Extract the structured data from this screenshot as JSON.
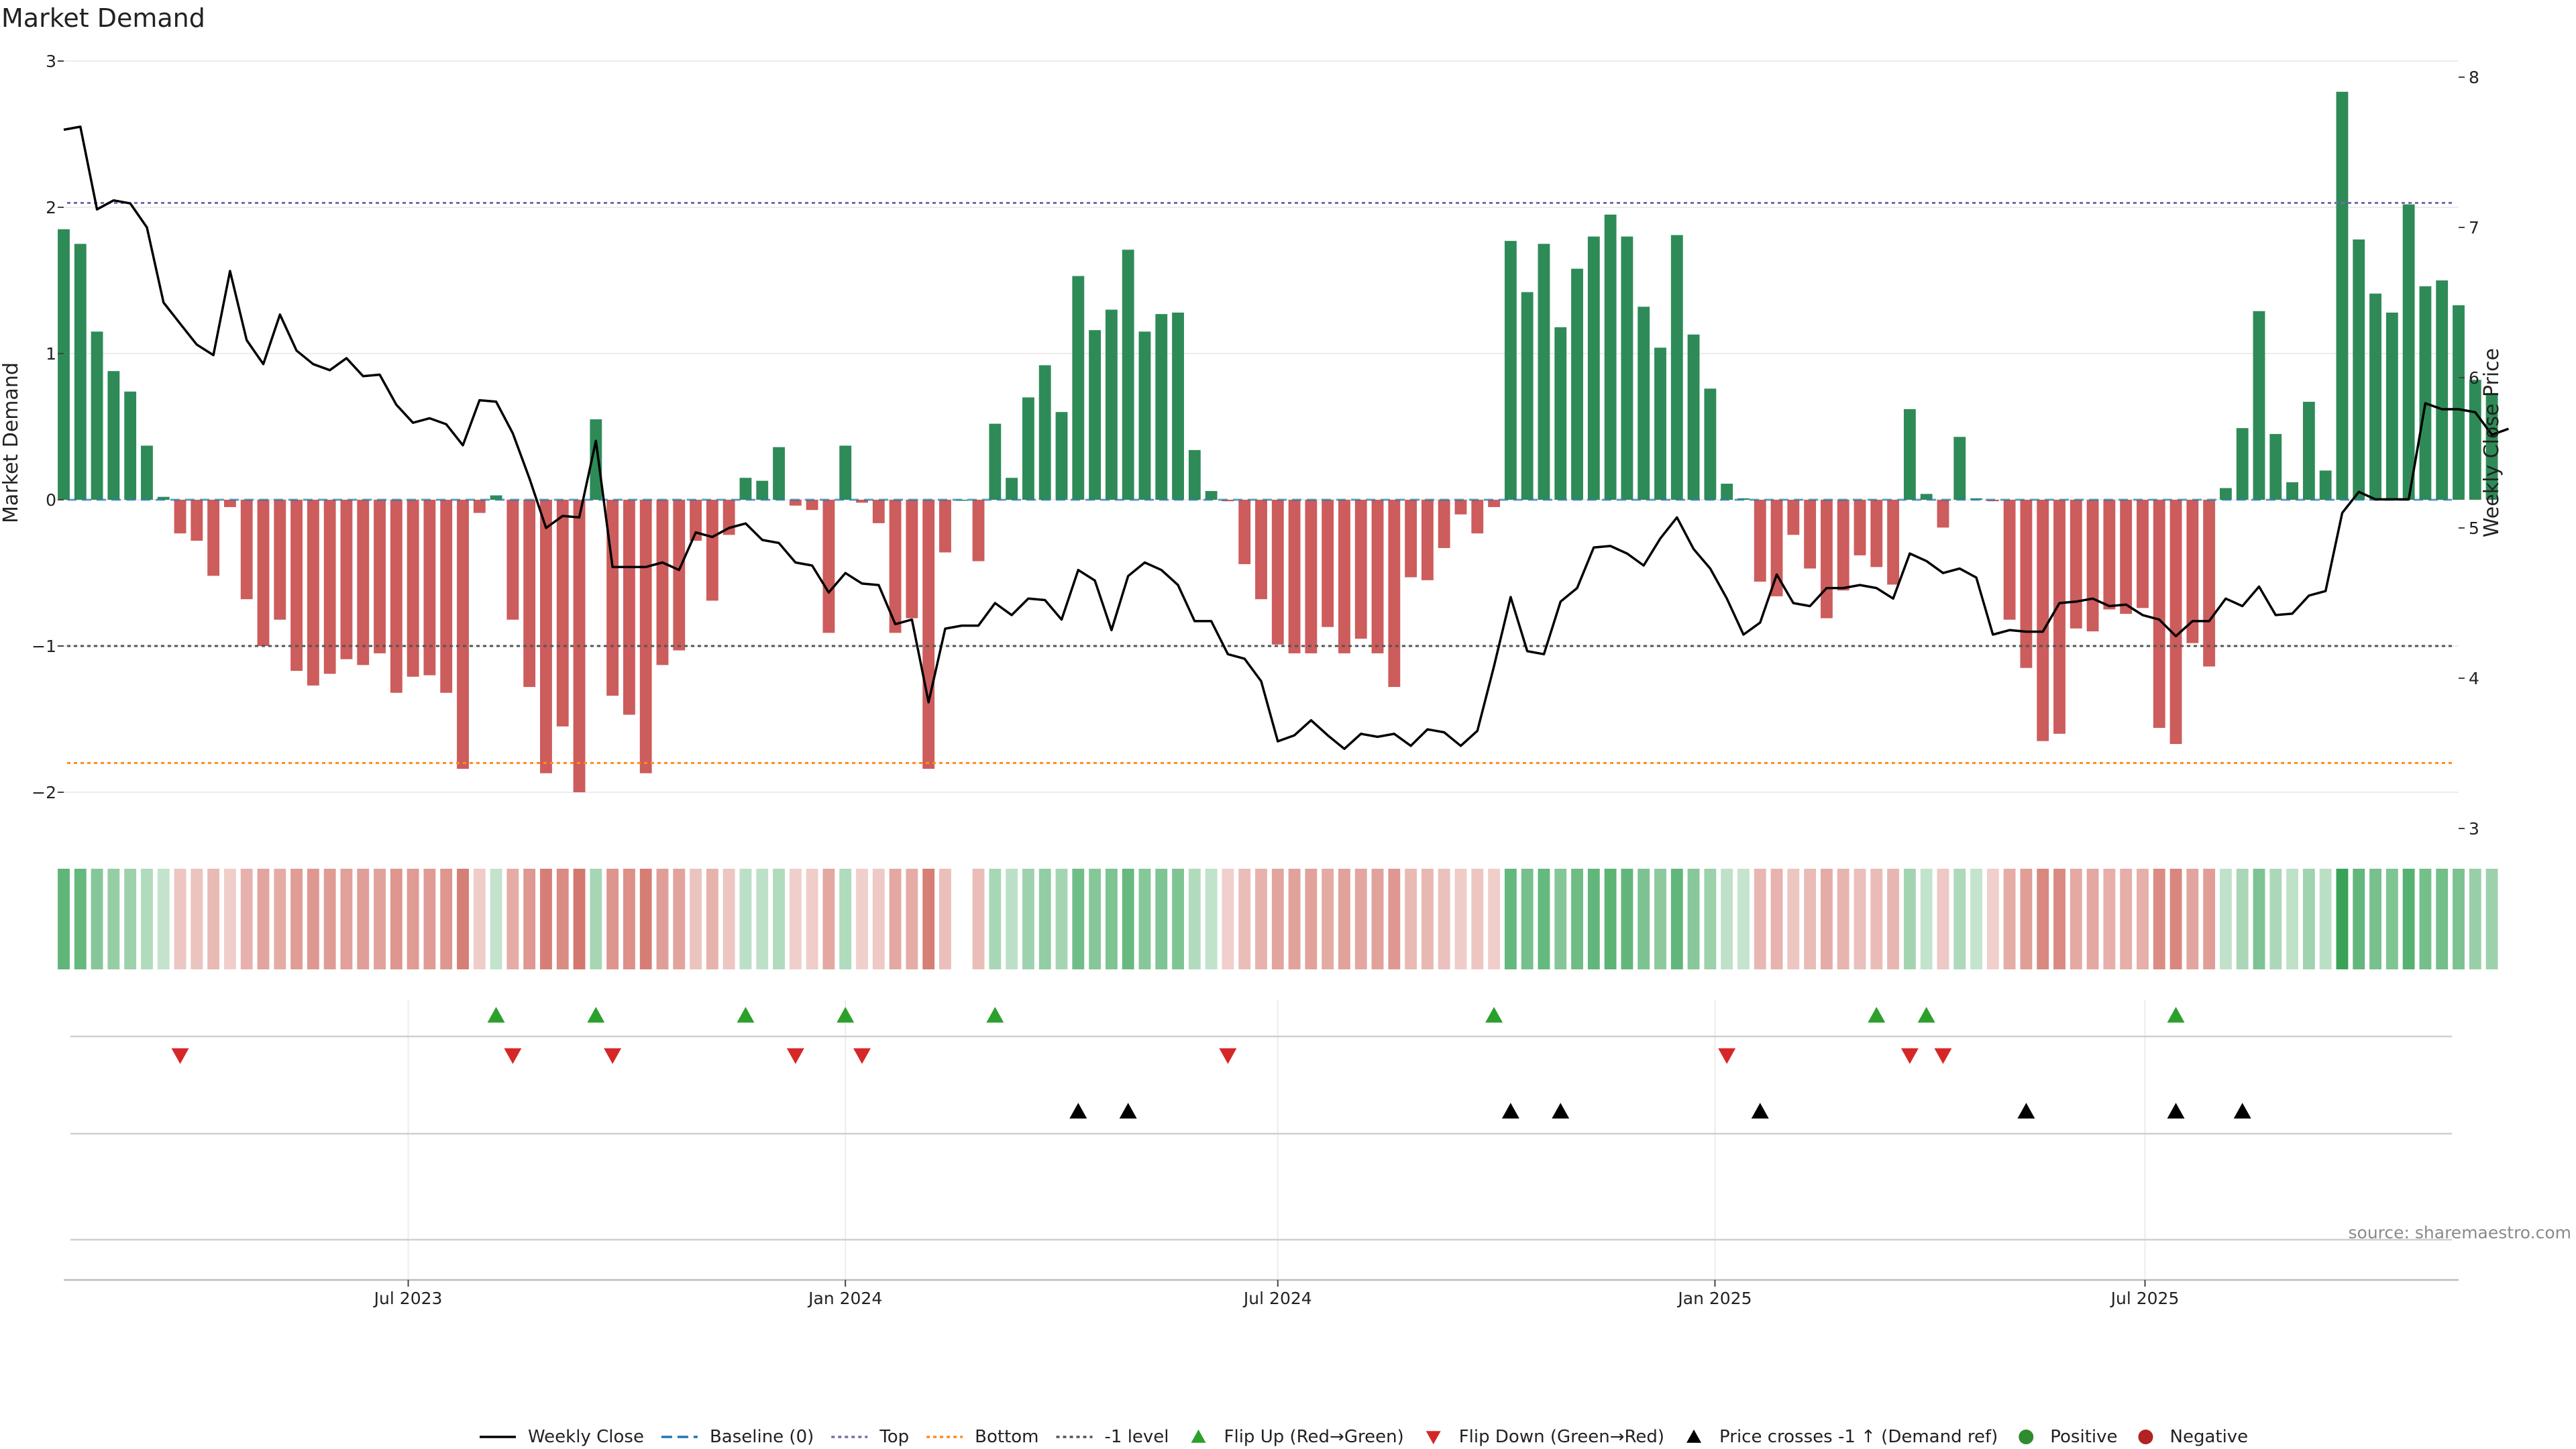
{
  "chart_data": {
    "type": "bar",
    "title": "Market Demand",
    "ylabel": "Market Demand",
    "y2label": "Weekly Close Price",
    "ylim": [
      -2.2,
      3
    ],
    "y2lim": [
      2.8,
      8.3
    ],
    "yticks": [
      3,
      2,
      1,
      0,
      -1,
      -2
    ],
    "yticks_labels": [
      "3",
      "2",
      "1",
      "0",
      "−1",
      "−2"
    ],
    "y2ticks": [
      8,
      7,
      6,
      5,
      4,
      3
    ],
    "xlim": [
      "2023-02-06",
      "2025-11-10"
    ],
    "xticks": [
      {
        "date": "2023-07-01",
        "label": "Jul 2023"
      },
      {
        "date": "2024-01-01",
        "label": "Jan 2024"
      },
      {
        "date": "2024-07-01",
        "label": "Jul 2024"
      },
      {
        "date": "2025-01-01",
        "label": "Jan 2025"
      },
      {
        "date": "2025-07-01",
        "label": "Jul 2025"
      }
    ],
    "start_week": "2023-02-06",
    "week_days": 7,
    "demand": [
      1.85,
      1.75,
      1.15,
      0.88,
      0.74,
      0.37,
      0.02,
      -0.23,
      -0.28,
      -0.52,
      -0.05,
      -0.68,
      -1.0,
      -0.82,
      -1.17,
      -1.27,
      -1.19,
      -1.09,
      -1.13,
      -1.05,
      -1.32,
      -1.21,
      -1.2,
      -1.32,
      -1.84,
      -0.09,
      0.03,
      -0.82,
      -1.28,
      -1.87,
      -1.55,
      -2.0,
      0.55,
      -1.34,
      -1.47,
      -1.87,
      -1.13,
      -1.03,
      -0.28,
      -0.69,
      -0.24,
      0.15,
      0.13,
      0.36,
      -0.04,
      -0.07,
      -0.91,
      0.37,
      -0.02,
      -0.16,
      -0.91,
      -0.81,
      -1.84,
      -0.36,
      0.0,
      -0.42,
      0.52,
      0.15,
      0.7,
      0.92,
      0.6,
      1.53,
      1.16,
      1.3,
      1.71,
      1.15,
      1.27,
      1.28,
      0.34,
      0.06,
      -0.01,
      -0.44,
      -0.68,
      -0.99,
      -1.05,
      -1.05,
      -0.87,
      -1.05,
      -0.95,
      -1.05,
      -1.28,
      -0.53,
      -0.55,
      -0.33,
      -0.1,
      -0.23,
      -0.05,
      1.77,
      1.42,
      1.75,
      1.18,
      1.58,
      1.8,
      1.95,
      1.8,
      1.32,
      1.04,
      1.81,
      1.13,
      0.76,
      0.11,
      0.01,
      -0.56,
      -0.66,
      -0.24,
      -0.47,
      -0.81,
      -0.62,
      -0.38,
      -0.46,
      -0.58,
      0.62,
      0.04,
      -0.19,
      0.43,
      0.01,
      -0.01,
      -0.82,
      -1.15,
      -1.65,
      -1.6,
      -0.88,
      -0.9,
      -0.75,
      -0.78,
      -0.74,
      -1.56,
      -1.67,
      -0.98,
      -1.14,
      0.08,
      0.49,
      1.29,
      0.45,
      0.12,
      0.67,
      0.2,
      2.79,
      1.78,
      1.41,
      1.28,
      2.02,
      1.46,
      1.5,
      1.33,
      0.82,
      0.73
    ],
    "close": [
      7.65,
      7.67,
      7.12,
      7.18,
      7.16,
      7.0,
      6.5,
      6.36,
      6.22,
      6.15,
      6.71,
      6.25,
      6.09,
      6.42,
      6.18,
      6.09,
      6.05,
      6.13,
      6.01,
      6.02,
      5.82,
      5.7,
      5.73,
      5.69,
      5.55,
      5.85,
      5.84,
      5.63,
      5.33,
      5.0,
      5.08,
      5.07,
      5.58,
      4.74,
      4.74,
      4.74,
      4.77,
      4.72,
      4.97,
      4.94,
      5.0,
      5.03,
      4.92,
      4.9,
      4.77,
      4.75,
      4.57,
      4.7,
      4.63,
      4.62,
      4.36,
      4.39,
      3.84,
      4.33,
      4.35,
      4.35,
      4.5,
      4.42,
      4.53,
      4.52,
      4.39,
      4.72,
      4.65,
      4.32,
      4.68,
      4.77,
      4.72,
      4.62,
      4.38,
      4.38,
      4.16,
      4.13,
      3.98,
      3.58,
      3.62,
      3.72,
      3.62,
      3.53,
      3.63,
      3.61,
      3.63,
      3.55,
      3.66,
      3.64,
      3.55,
      3.65,
      4.08,
      4.54,
      4.18,
      4.16,
      4.51,
      4.6,
      4.87,
      4.88,
      4.83,
      4.75,
      4.93,
      5.07,
      4.86,
      4.73,
      4.53,
      4.29,
      4.37,
      4.69,
      4.5,
      4.48,
      4.6,
      4.6,
      4.62,
      4.6,
      4.53,
      4.83,
      4.78,
      4.7,
      4.73,
      4.67,
      4.29,
      4.32,
      4.31,
      4.31,
      4.5,
      4.51,
      4.53,
      4.48,
      4.49,
      4.42,
      4.39,
      4.28,
      4.38,
      4.38,
      4.53,
      4.48,
      4.61,
      4.42,
      4.43,
      4.55,
      4.58,
      5.1,
      5.24,
      5.19,
      5.19,
      5.19,
      5.83,
      5.79,
      5.79,
      5.77,
      5.62,
      5.66
    ],
    "levels": {
      "top": 2.03,
      "bottom": -1.8,
      "minus1": -1.0,
      "baseline": 0
    },
    "flip_up_weeks": [
      26,
      32,
      41,
      47,
      56,
      86,
      109,
      112,
      127
    ],
    "flip_down_weeks": [
      7,
      27,
      33,
      44,
      48,
      70,
      100,
      111,
      113
    ],
    "price_cross_weeks": [
      61,
      64,
      87,
      90,
      102,
      118,
      127,
      131
    ],
    "source": "source: sharemaestro.com",
    "colors": {
      "positive": "#2e8b57",
      "negative": "#cd5c5c",
      "close": "#000000",
      "top": "#7b68ae",
      "bottom": "#ff8c1a",
      "minus1": "#555555",
      "baseline": "#1f77b4",
      "flip_up": "#2ca02c",
      "flip_down": "#d62728",
      "cross": "#000000",
      "positive_dot": "#2e8b2e",
      "negative_dot": "#b22222"
    },
    "legend": [
      {
        "label": "Weekly Close",
        "kind": "line-solid",
        "color": "#000000"
      },
      {
        "label": "Baseline (0)",
        "kind": "line-dashed",
        "color": "#1f77b4"
      },
      {
        "label": "Top",
        "kind": "line-dotted",
        "color": "#7b68ae"
      },
      {
        "label": "Bottom",
        "kind": "line-dotted",
        "color": "#ff8c1a"
      },
      {
        "label": "-1 level",
        "kind": "line-dotted",
        "color": "#555555"
      },
      {
        "label": "Flip Up (Red→Green)",
        "kind": "tri-up",
        "color": "#2ca02c"
      },
      {
        "label": "Flip Down (Green→Red)",
        "kind": "tri-down",
        "color": "#d62728"
      },
      {
        "label": "Price crosses -1 ↑ (Demand ref)",
        "kind": "tri-up",
        "color": "#000000"
      },
      {
        "label": "Positive",
        "kind": "dot",
        "color": "#2e8b2e"
      },
      {
        "label": "Negative",
        "kind": "dot",
        "color": "#b22222"
      }
    ]
  }
}
